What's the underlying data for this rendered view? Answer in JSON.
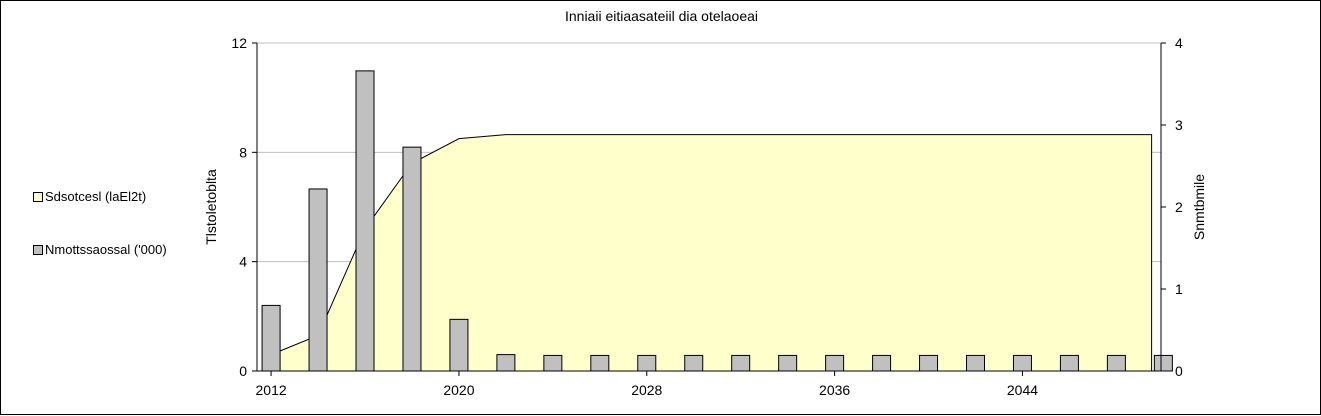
{
  "chart_data": {
    "type": "bar",
    "title": "Inniaii eitiaasateiil dia otelaoeai",
    "ylabel_left": "Tlstoletoblta",
    "ylabel_right": "Snmtbmile",
    "y_left_lim": [
      0,
      12
    ],
    "y_left_ticks": [
      0,
      4,
      8,
      12
    ],
    "y_right_lim": [
      0,
      4
    ],
    "y_right_ticks": [
      0,
      1,
      2,
      3,
      4
    ],
    "x_lim": [
      2011.4,
      2049.9
    ],
    "x_tick_values": [
      2012,
      2020,
      2028,
      2036,
      2044
    ],
    "x_tick_labels": [
      "2012",
      "2020",
      "2028",
      "2036",
      "2044"
    ],
    "grid": true,
    "legend_position": "left",
    "series": [
      {
        "name": "Sdsotcesl (laEl2t)",
        "kind": "area",
        "axis": "left",
        "color": "#ffffcc",
        "x": [
          2012,
          2014,
          2016,
          2018,
          2020,
          2022,
          2024,
          2026,
          2028,
          2030,
          2032,
          2034,
          2036,
          2038,
          2040,
          2042,
          2044,
          2046,
          2048,
          2049.5
        ],
        "values": [
          0.6,
          1.3,
          5.2,
          7.6,
          8.5,
          8.65,
          8.65,
          8.65,
          8.65,
          8.65,
          8.65,
          8.65,
          8.65,
          8.65,
          8.65,
          8.65,
          8.65,
          8.65,
          8.65,
          8.65
        ]
      },
      {
        "name": "Nmottssaossal ('000)",
        "kind": "bar",
        "axis": "right",
        "color": "#c0c0c0",
        "x": [
          2012,
          2014,
          2016,
          2018,
          2020,
          2022,
          2024,
          2026,
          2028,
          2030,
          2032,
          2034,
          2036,
          2038,
          2040,
          2042,
          2044,
          2046,
          2048,
          2050
        ],
        "values": [
          0.8,
          2.22,
          3.66,
          2.73,
          0.63,
          0.2,
          0.19,
          0.19,
          0.19,
          0.19,
          0.19,
          0.19,
          0.19,
          0.19,
          0.19,
          0.19,
          0.19,
          0.19,
          0.19,
          0.19
        ]
      }
    ],
    "legend": [
      {
        "label": "Sdsotcesl (laEl2t)",
        "color": "#ffffcc"
      },
      {
        "label": "Nmottssaossal ('000)",
        "color": "#c0c0c0"
      }
    ]
  }
}
